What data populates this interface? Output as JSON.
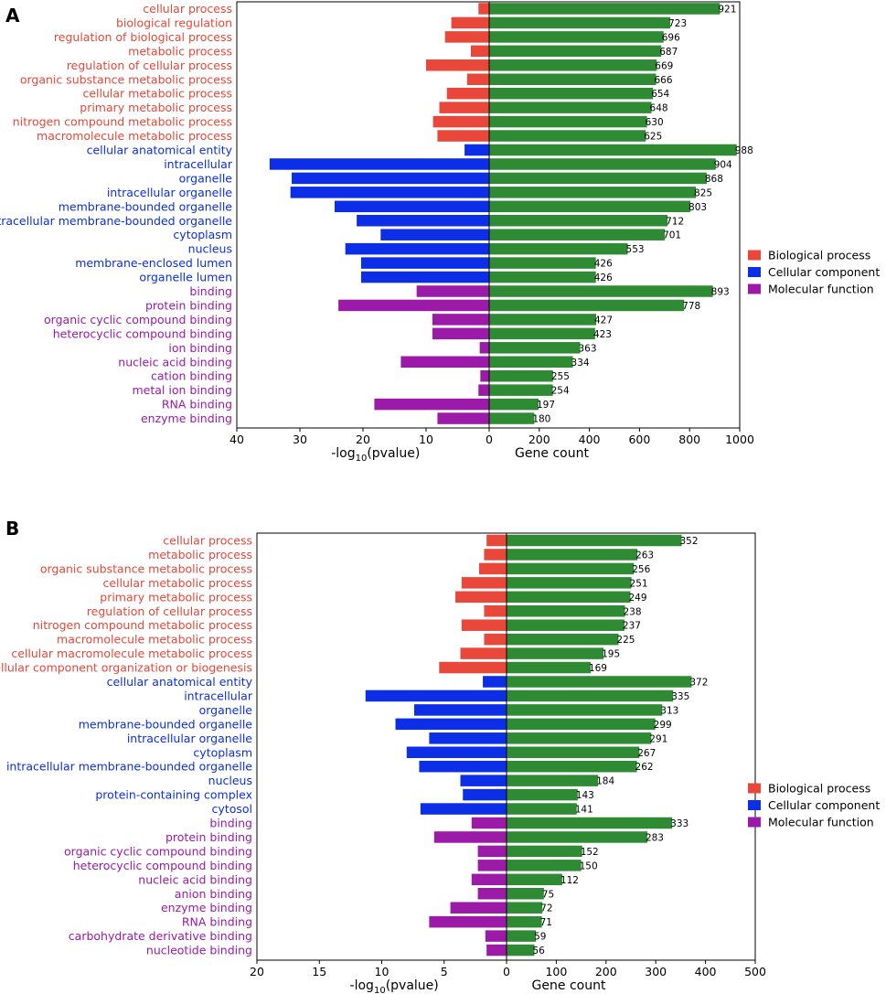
{
  "colors": {
    "biological_process": "#e8473a",
    "cellular_component": "#0c2ee6",
    "molecular_function": "#9b1aa8",
    "gene_count": "#2e8b34"
  },
  "legend": [
    {
      "key": "biological_process",
      "label": "Biological process"
    },
    {
      "key": "cellular_component",
      "label": "Cellular component"
    },
    {
      "key": "molecular_function",
      "label": "Molecular function"
    }
  ],
  "chart_data": [
    {
      "panel": "A",
      "type": "bar",
      "xlabel_left": {
        "main": "-log",
        "sub": "10",
        "rest": "(pvalue)"
      },
      "xlabel_right": "Gene count",
      "pvalue_ticks": [
        "40",
        "30",
        "20",
        "10",
        "0"
      ],
      "count_ticks": [
        "0",
        "200",
        "400",
        "600",
        "800",
        "1000"
      ],
      "pvalue_lim": [
        0,
        40
      ],
      "count_lim": [
        0,
        1000
      ],
      "categories": [
        {
          "name": "cellular process",
          "group": "biological_process",
          "neglog10p": 1.7,
          "count": 921
        },
        {
          "name": "biological regulation",
          "group": "biological_process",
          "neglog10p": 6.0,
          "count": 723
        },
        {
          "name": "regulation of biological process",
          "group": "biological_process",
          "neglog10p": 7.0,
          "count": 696
        },
        {
          "name": "metabolic process",
          "group": "biological_process",
          "neglog10p": 2.9,
          "count": 687
        },
        {
          "name": "regulation of cellular process",
          "group": "biological_process",
          "neglog10p": 10.0,
          "count": 669
        },
        {
          "name": "organic substance metabolic process",
          "group": "biological_process",
          "neglog10p": 3.5,
          "count": 666
        },
        {
          "name": "cellular metabolic process",
          "group": "biological_process",
          "neglog10p": 6.7,
          "count": 654
        },
        {
          "name": "primary metabolic process",
          "group": "biological_process",
          "neglog10p": 7.9,
          "count": 648
        },
        {
          "name": "nitrogen compound metabolic process",
          "group": "biological_process",
          "neglog10p": 8.9,
          "count": 630
        },
        {
          "name": "macromolecule metabolic process",
          "group": "biological_process",
          "neglog10p": 8.2,
          "count": 625
        },
        {
          "name": "cellular anatomical entity",
          "group": "cellular_component",
          "neglog10p": 3.9,
          "count": 988
        },
        {
          "name": "intracellular",
          "group": "cellular_component",
          "neglog10p": 34.8,
          "count": 904
        },
        {
          "name": "organelle",
          "group": "cellular_component",
          "neglog10p": 31.3,
          "count": 868
        },
        {
          "name": "intracellular organelle",
          "group": "cellular_component",
          "neglog10p": 31.5,
          "count": 825
        },
        {
          "name": "membrane-bounded organelle",
          "group": "cellular_component",
          "neglog10p": 24.5,
          "count": 803
        },
        {
          "name": "intracellular membrane-bounded organelle",
          "group": "cellular_component",
          "neglog10p": 21.0,
          "count": 712
        },
        {
          "name": "cytoplasm",
          "group": "cellular_component",
          "neglog10p": 17.2,
          "count": 701
        },
        {
          "name": "nucleus",
          "group": "cellular_component",
          "neglog10p": 22.8,
          "count": 553
        },
        {
          "name": "membrane-enclosed lumen",
          "group": "cellular_component",
          "neglog10p": 20.3,
          "count": 426
        },
        {
          "name": "organelle lumen",
          "group": "cellular_component",
          "neglog10p": 20.3,
          "count": 426
        },
        {
          "name": "binding",
          "group": "molecular_function",
          "neglog10p": 11.5,
          "count": 893
        },
        {
          "name": "protein binding",
          "group": "molecular_function",
          "neglog10p": 23.9,
          "count": 778
        },
        {
          "name": "organic cyclic compound binding",
          "group": "molecular_function",
          "neglog10p": 9.0,
          "count": 427
        },
        {
          "name": "heterocyclic compound binding",
          "group": "molecular_function",
          "neglog10p": 9.0,
          "count": 423
        },
        {
          "name": "ion binding",
          "group": "molecular_function",
          "neglog10p": 1.5,
          "count": 363
        },
        {
          "name": "nucleic acid binding",
          "group": "molecular_function",
          "neglog10p": 14.0,
          "count": 334
        },
        {
          "name": "cation binding",
          "group": "molecular_function",
          "neglog10p": 1.4,
          "count": 255
        },
        {
          "name": "metal ion binding",
          "group": "molecular_function",
          "neglog10p": 1.7,
          "count": 254
        },
        {
          "name": "RNA binding",
          "group": "molecular_function",
          "neglog10p": 18.2,
          "count": 197
        },
        {
          "name": "enzyme binding",
          "group": "molecular_function",
          "neglog10p": 8.2,
          "count": 180
        }
      ]
    },
    {
      "panel": "B",
      "type": "bar",
      "xlabel_left": {
        "main": "-log",
        "sub": "10",
        "rest": "(pvalue)"
      },
      "xlabel_right": "Gene count",
      "pvalue_ticks": [
        "20",
        "15",
        "10",
        "5",
        "0"
      ],
      "count_ticks": [
        "0",
        "100",
        "200",
        "300",
        "400",
        "500"
      ],
      "pvalue_lim": [
        0,
        20
      ],
      "count_lim": [
        0,
        500
      ],
      "categories": [
        {
          "name": "cellular process",
          "group": "biological_process",
          "neglog10p": 1.6,
          "count": 352
        },
        {
          "name": "metabolic process",
          "group": "biological_process",
          "neglog10p": 1.8,
          "count": 263
        },
        {
          "name": "organic substance metabolic process",
          "group": "biological_process",
          "neglog10p": 2.2,
          "count": 256
        },
        {
          "name": "cellular metabolic process",
          "group": "biological_process",
          "neglog10p": 3.6,
          "count": 251
        },
        {
          "name": "primary metabolic process",
          "group": "biological_process",
          "neglog10p": 4.1,
          "count": 249
        },
        {
          "name": "regulation of cellular process",
          "group": "biological_process",
          "neglog10p": 1.8,
          "count": 238
        },
        {
          "name": "nitrogen compound metabolic process",
          "group": "biological_process",
          "neglog10p": 3.6,
          "count": 237
        },
        {
          "name": "macromolecule metabolic process",
          "group": "biological_process",
          "neglog10p": 1.8,
          "count": 225
        },
        {
          "name": "cellular macromolecule metabolic process",
          "group": "biological_process",
          "neglog10p": 3.7,
          "count": 195
        },
        {
          "name": "cellular component organization or biogenesis",
          "group": "biological_process",
          "neglog10p": 5.4,
          "count": 169
        },
        {
          "name": "cellular anatomical entity",
          "group": "cellular_component",
          "neglog10p": 1.9,
          "count": 372
        },
        {
          "name": "intracellular",
          "group": "cellular_component",
          "neglog10p": 11.3,
          "count": 335
        },
        {
          "name": "organelle",
          "group": "cellular_component",
          "neglog10p": 7.4,
          "count": 313
        },
        {
          "name": "membrane-bounded organelle",
          "group": "cellular_component",
          "neglog10p": 8.9,
          "count": 299
        },
        {
          "name": "intracellular organelle",
          "group": "cellular_component",
          "neglog10p": 6.2,
          "count": 291
        },
        {
          "name": "cytoplasm",
          "group": "cellular_component",
          "neglog10p": 8.0,
          "count": 267
        },
        {
          "name": "intracellular membrane-bounded organelle",
          "group": "cellular_component",
          "neglog10p": 7.0,
          "count": 262
        },
        {
          "name": "nucleus",
          "group": "cellular_component",
          "neglog10p": 3.7,
          "count": 184
        },
        {
          "name": "protein-containing complex",
          "group": "cellular_component",
          "neglog10p": 3.5,
          "count": 143
        },
        {
          "name": "cytosol",
          "group": "cellular_component",
          "neglog10p": 6.9,
          "count": 141
        },
        {
          "name": "binding",
          "group": "molecular_function",
          "neglog10p": 2.8,
          "count": 333
        },
        {
          "name": "protein binding",
          "group": "molecular_function",
          "neglog10p": 5.8,
          "count": 283
        },
        {
          "name": "organic cyclic compound binding",
          "group": "molecular_function",
          "neglog10p": 2.3,
          "count": 152
        },
        {
          "name": "heterocyclic compound binding",
          "group": "molecular_function",
          "neglog10p": 2.3,
          "count": 150
        },
        {
          "name": "nucleic acid binding",
          "group": "molecular_function",
          "neglog10p": 2.8,
          "count": 112
        },
        {
          "name": "anion binding",
          "group": "molecular_function",
          "neglog10p": 2.3,
          "count": 75
        },
        {
          "name": "enzyme binding",
          "group": "molecular_function",
          "neglog10p": 4.5,
          "count": 72
        },
        {
          "name": "RNA binding",
          "group": "molecular_function",
          "neglog10p": 6.2,
          "count": 71
        },
        {
          "name": "carbohydrate derivative binding",
          "group": "molecular_function",
          "neglog10p": 1.7,
          "count": 59
        },
        {
          "name": "nucleotide binding",
          "group": "molecular_function",
          "neglog10p": 1.6,
          "count": 56
        }
      ]
    }
  ]
}
